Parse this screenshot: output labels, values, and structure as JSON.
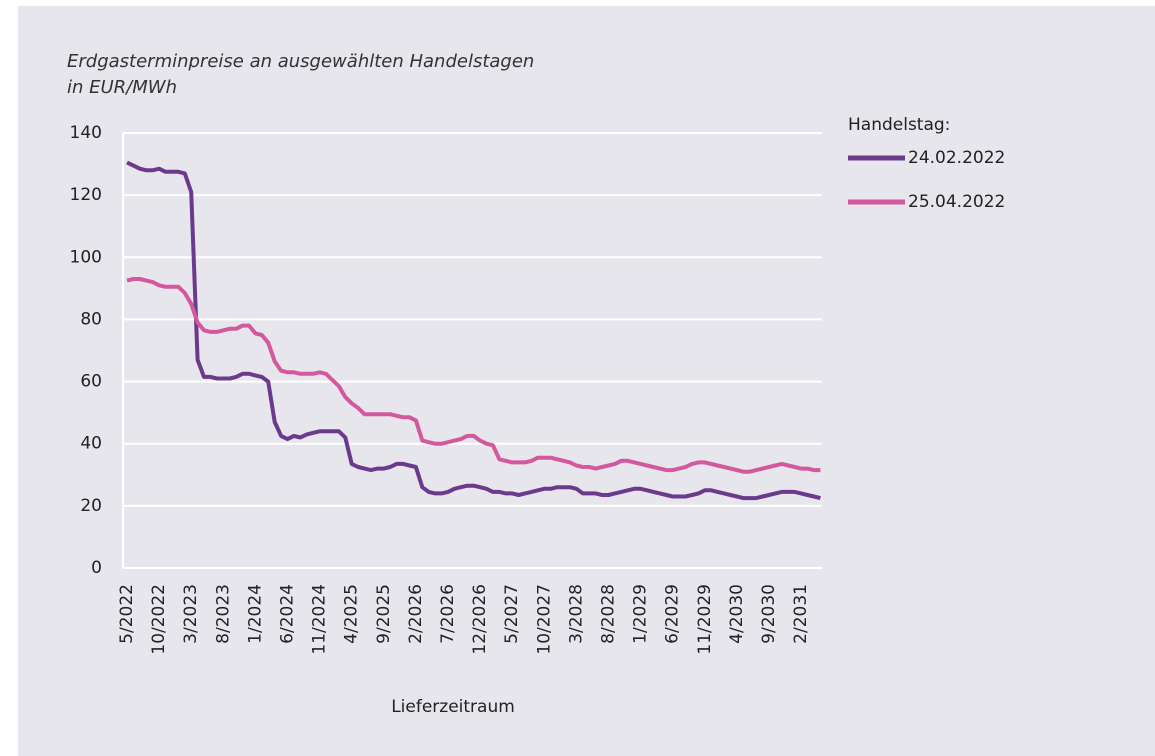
{
  "chart_data": {
    "type": "line",
    "title": "Erdgasterminpreise an ausgewählten Handelstagen in EUR/MWh",
    "x_label": "Lieferzeitraum",
    "legend_title": "Handelstag:",
    "categories": [
      "5/2022",
      null,
      null,
      null,
      null,
      "10/2022",
      null,
      null,
      null,
      null,
      "3/2023",
      null,
      null,
      null,
      null,
      "8/2023",
      null,
      null,
      null,
      null,
      "1/2024",
      null,
      null,
      null,
      null,
      "6/2024",
      null,
      null,
      null,
      null,
      "11/2024",
      null,
      null,
      null,
      null,
      "4/2025",
      null,
      null,
      null,
      null,
      "9/2025",
      null,
      null,
      null,
      null,
      "2/2026",
      null,
      null,
      null,
      null,
      "7/2026",
      null,
      null,
      null,
      null,
      "12/2026",
      null,
      null,
      null,
      null,
      "5/2027",
      null,
      null,
      null,
      null,
      "10/2027",
      null,
      null,
      null,
      null,
      "3/2028",
      null,
      null,
      null,
      null,
      "8/2028",
      null,
      null,
      null,
      null,
      "1/2029",
      null,
      null,
      null,
      null,
      "6/2029",
      null,
      null,
      null,
      null,
      "11/2029",
      null,
      null,
      null,
      null,
      "4/2030",
      null,
      null,
      null,
      null,
      "9/2030",
      null,
      null,
      null,
      null,
      "2/2031",
      null,
      null,
      null
    ],
    "series": [
      {
        "name": "24.02.2022",
        "color": "#6b3a8c",
        "values": [
          130.5,
          129.5,
          128.5,
          128,
          128,
          128.5,
          127.5,
          127.5,
          127.5,
          127,
          121,
          67,
          61.5,
          61.5,
          61,
          61,
          61,
          61.5,
          62.5,
          62.5,
          62,
          61.5,
          60,
          47,
          42.5,
          41.5,
          42.5,
          42,
          43,
          43.5,
          44,
          44,
          44,
          44,
          42,
          33.5,
          32.5,
          32,
          31.5,
          32,
          32,
          32.5,
          33.5,
          33.5,
          33,
          32.5,
          26,
          24.5,
          24,
          24,
          24.5,
          25.5,
          26,
          26.5,
          26.5,
          26,
          25.5,
          24.5,
          24.5,
          24,
          24,
          23.5,
          24,
          24.5,
          25,
          25.5,
          25.5,
          26,
          26,
          26,
          25.5,
          24,
          24,
          24,
          23.5,
          23.5,
          24,
          24.5,
          25,
          25.5,
          25.5,
          25,
          24.5,
          24,
          23.5,
          23,
          23,
          23,
          23.5,
          24,
          25,
          25,
          24.5,
          24,
          23.5,
          23,
          22.5,
          22.5,
          22.5,
          23,
          23.5,
          24,
          24.5,
          24.5,
          24.5,
          24,
          23.5,
          23,
          22.5
        ]
      },
      {
        "name": "25.04.2022",
        "color": "#d4589e",
        "values": [
          92.5,
          93,
          93,
          92.5,
          92,
          91,
          90.5,
          90.5,
          90.5,
          88.5,
          85,
          79,
          76.5,
          76,
          76,
          76.5,
          77,
          77,
          78,
          78,
          75.5,
          75,
          72.5,
          66.5,
          63.5,
          63,
          63,
          62.5,
          62.5,
          62.5,
          63,
          62.5,
          60.5,
          58.5,
          55,
          53,
          51.5,
          49.5,
          49.5,
          49.5,
          49.5,
          49.5,
          49,
          48.5,
          48.5,
          47.5,
          41,
          40.5,
          40,
          40,
          40.5,
          41,
          41.5,
          42.5,
          42.5,
          41,
          40,
          39.5,
          35,
          34.5,
          34,
          34,
          34,
          34.5,
          35.5,
          35.5,
          35.5,
          35,
          34.5,
          34,
          33,
          32.5,
          32.5,
          32,
          32.5,
          33,
          33.5,
          34.5,
          34.5,
          34,
          33.5,
          33,
          32.5,
          32,
          31.5,
          31.5,
          32,
          32.5,
          33.5,
          34,
          34,
          33.5,
          33,
          32.5,
          32,
          31.5,
          31,
          31,
          31.5,
          32,
          32.5,
          33,
          33.5,
          33,
          32.5,
          32,
          32,
          31.5,
          31.5
        ]
      }
    ],
    "ylim": [
      0,
      140
    ],
    "yticks": [
      0,
      20,
      40,
      60,
      80,
      100,
      120,
      140
    ],
    "grid": true
  }
}
